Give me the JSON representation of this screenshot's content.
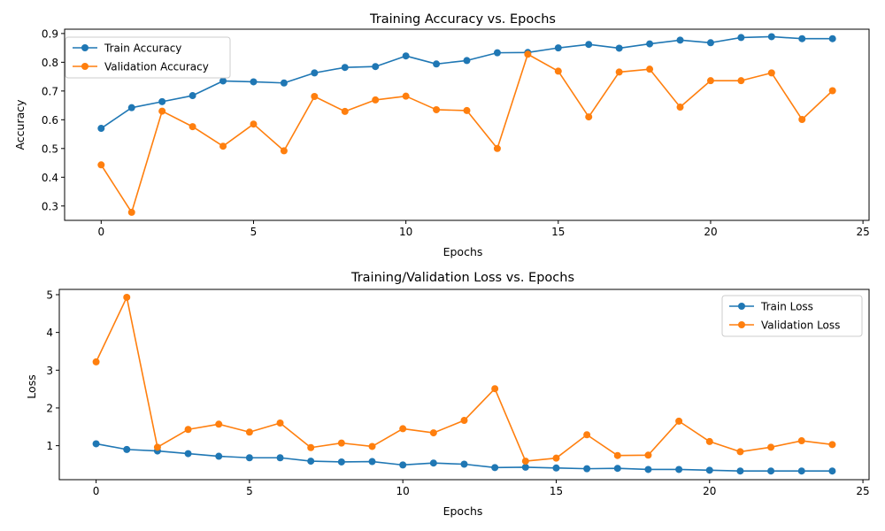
{
  "chart_data": [
    {
      "type": "line",
      "title": "Training Accuracy vs. Epochs",
      "xlabel": "Epochs",
      "ylabel": "Accuracy",
      "x": [
        0,
        1,
        2,
        3,
        4,
        5,
        6,
        7,
        8,
        9,
        10,
        11,
        12,
        13,
        14,
        15,
        16,
        17,
        18,
        19,
        20,
        21,
        22,
        23,
        24
      ],
      "xlim": [
        -1.2,
        25.2
      ],
      "ylim": [
        0.25,
        0.915
      ],
      "xticks": [
        0,
        5,
        10,
        15,
        20,
        25
      ],
      "yticks": [
        0.3,
        0.4,
        0.5,
        0.6,
        0.7,
        0.8,
        0.9
      ],
      "legend_position": "top-left",
      "grid": false,
      "series": [
        {
          "name": "Train Accuracy",
          "color": "#1f77b4",
          "values": [
            0.57,
            0.642,
            0.663,
            0.684,
            0.735,
            0.732,
            0.728,
            0.763,
            0.782,
            0.785,
            0.822,
            0.794,
            0.806,
            0.833,
            0.834,
            0.85,
            0.862,
            0.849,
            0.864,
            0.877,
            0.868,
            0.886,
            0.889,
            0.882,
            0.882
          ]
        },
        {
          "name": "Validation Accuracy",
          "color": "#ff7f0e",
          "values": [
            0.443,
            0.278,
            0.63,
            0.576,
            0.508,
            0.585,
            0.492,
            0.681,
            0.629,
            0.669,
            0.682,
            0.635,
            0.632,
            0.5,
            0.828,
            0.769,
            0.61,
            0.766,
            0.776,
            0.644,
            0.736,
            0.736,
            0.763,
            0.601,
            0.701
          ]
        }
      ]
    },
    {
      "type": "line",
      "title": "Training/Validation Loss vs. Epochs",
      "xlabel": "Epochs",
      "ylabel": "Loss",
      "x": [
        0,
        1,
        2,
        3,
        4,
        5,
        6,
        7,
        8,
        9,
        10,
        11,
        12,
        13,
        14,
        15,
        16,
        17,
        18,
        19,
        20,
        21,
        22,
        23,
        24
      ],
      "xlim": [
        -1.2,
        25.2
      ],
      "ylim": [
        0.1,
        5.14
      ],
      "xticks": [
        0,
        5,
        10,
        15,
        20,
        25
      ],
      "yticks": [
        1,
        2,
        3,
        4,
        5
      ],
      "legend_position": "top-right",
      "grid": false,
      "series": [
        {
          "name": "Train Loss",
          "color": "#1f77b4",
          "values": [
            1.05,
            0.9,
            0.86,
            0.79,
            0.72,
            0.68,
            0.68,
            0.59,
            0.57,
            0.58,
            0.49,
            0.54,
            0.51,
            0.42,
            0.43,
            0.41,
            0.39,
            0.4,
            0.37,
            0.37,
            0.35,
            0.33,
            0.33,
            0.33,
            0.33
          ]
        },
        {
          "name": "Validation Loss",
          "color": "#ff7f0e",
          "values": [
            3.22,
            4.93,
            0.96,
            1.43,
            1.57,
            1.36,
            1.6,
            0.95,
            1.07,
            0.98,
            1.45,
            1.34,
            1.67,
            2.51,
            0.59,
            0.67,
            1.29,
            0.74,
            0.75,
            1.65,
            1.11,
            0.84,
            0.96,
            1.13,
            1.03
          ]
        }
      ]
    }
  ]
}
